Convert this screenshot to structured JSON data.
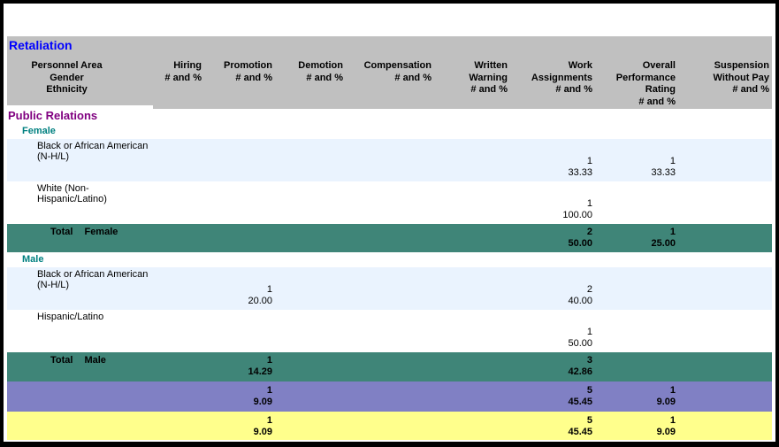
{
  "title": "Retaliation",
  "section": "Public Relations",
  "columns": [
    {
      "key": "personnel",
      "label": "Personnel Area\nGender\nEthnicity"
    },
    {
      "key": "hiring",
      "label": "Hiring\n# and %"
    },
    {
      "key": "promotion",
      "label": "Promotion\n# and %"
    },
    {
      "key": "demotion",
      "label": "Demotion\n# and %"
    },
    {
      "key": "compensation",
      "label": "Compensation\n# and %"
    },
    {
      "key": "written_warning",
      "label": "Written\nWarning\n# and %"
    },
    {
      "key": "work_assignments",
      "label": "Work\nAssignments\n# and %"
    },
    {
      "key": "overall_performance",
      "label": "Overall\nPerformance\nRating\n# and %"
    },
    {
      "key": "suspension_without_pay",
      "label": "Suspension\nWithout Pay\n# and %"
    }
  ],
  "rows": [
    {
      "type": "gender",
      "label": "Female"
    },
    {
      "type": "detail",
      "shade": "blue",
      "label": "Black or African American (N-H/L)",
      "values": {
        "work_assignments": [
          "1",
          "33.33"
        ],
        "overall_performance": [
          "1",
          "33.33"
        ]
      }
    },
    {
      "type": "detail",
      "shade": "white",
      "label": "White (Non-Hispanic/Latino)",
      "values": {
        "work_assignments": [
          "1",
          "100.00"
        ]
      }
    },
    {
      "type": "total",
      "label": "Total",
      "gender": "Female",
      "values": {
        "work_assignments": [
          "2",
          "50.00"
        ],
        "overall_performance": [
          "1",
          "25.00"
        ]
      }
    },
    {
      "type": "gender",
      "label": "Male"
    },
    {
      "type": "detail",
      "shade": "blue",
      "label": "Black or African American (N-H/L)",
      "values": {
        "promotion": [
          "1",
          "20.00"
        ],
        "work_assignments": [
          "2",
          "40.00"
        ]
      }
    },
    {
      "type": "detail",
      "shade": "white",
      "label": "Hispanic/Latino",
      "values": {
        "work_assignments": [
          "1",
          "50.00"
        ]
      }
    },
    {
      "type": "total",
      "tall": true,
      "label": "Total",
      "gender": "Male",
      "values": {
        "promotion": [
          "1",
          "14.29"
        ],
        "work_assignments": [
          "3",
          "42.86"
        ]
      }
    },
    {
      "type": "summary",
      "shade": "purple",
      "values": {
        "promotion": [
          "1",
          "9.09"
        ],
        "work_assignments": [
          "5",
          "45.45"
        ],
        "overall_performance": [
          "1",
          "9.09"
        ]
      }
    },
    {
      "type": "summary",
      "shade": "yellow",
      "values": {
        "promotion": [
          "1",
          "9.09"
        ],
        "work_assignments": [
          "5",
          "45.45"
        ],
        "overall_performance": [
          "1",
          "9.09"
        ]
      }
    }
  ],
  "colors": {
    "header_gray": "#C0C0C0",
    "title_blue": "#0000FF",
    "section_purple": "#800080",
    "gender_teal": "#008080",
    "row_light_blue": "#EAF3FE",
    "total_teal": "#3F8578",
    "summary_purple": "#8080C4",
    "summary_yellow": "#FFFF8C",
    "border_black": "#000000"
  }
}
